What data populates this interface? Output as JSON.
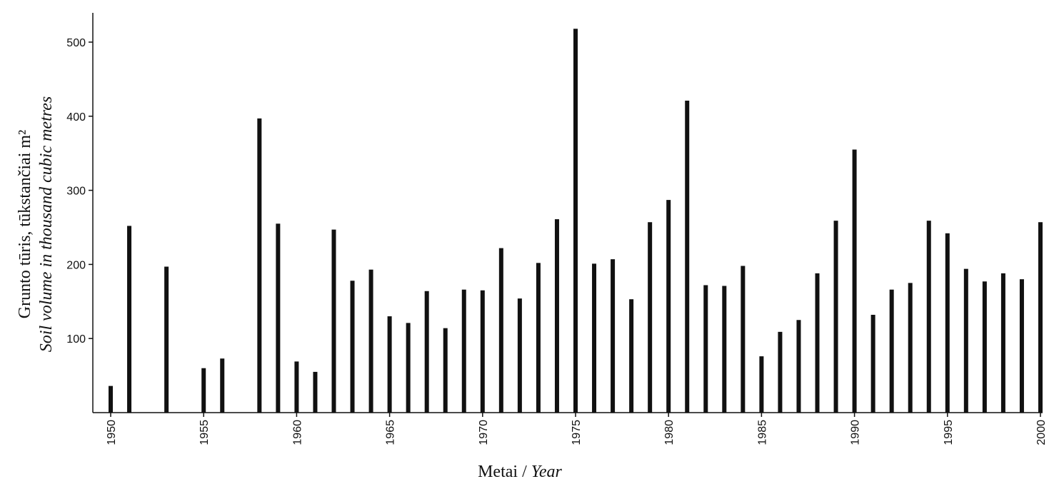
{
  "chart_data": {
    "type": "bar",
    "title": "",
    "xlabel_primary": "Metai / ",
    "xlabel_secondary": "Year",
    "ylabel_primary": "Grunto tūris, tūkstančiai m²",
    "ylabel_secondary": "Soil volume in thousand cubic metres",
    "xlim": [
      1950,
      2000
    ],
    "ylim": [
      0,
      540
    ],
    "yticks": [
      100,
      200,
      300,
      400,
      500
    ],
    "xticks": [
      1950,
      1955,
      1960,
      1965,
      1970,
      1975,
      1980,
      1985,
      1990,
      1995,
      2000
    ],
    "grid": false,
    "colors": {
      "bar": "#111111",
      "axis": "#111111"
    },
    "x": [
      1950,
      1951,
      1953,
      1955,
      1956,
      1958,
      1959,
      1960,
      1961,
      1962,
      1963,
      1964,
      1965,
      1966,
      1967,
      1968,
      1969,
      1970,
      1971,
      1972,
      1973,
      1974,
      1975,
      1976,
      1977,
      1978,
      1979,
      1980,
      1981,
      1982,
      1983,
      1984,
      1985,
      1986,
      1987,
      1988,
      1989,
      1990,
      1991,
      1992,
      1993,
      1994,
      1995,
      1996,
      1997,
      1998,
      1999,
      2000
    ],
    "values": [
      36,
      252,
      197,
      60,
      73,
      397,
      255,
      69,
      55,
      247,
      178,
      193,
      130,
      121,
      164,
      114,
      166,
      165,
      222,
      154,
      202,
      261,
      518,
      201,
      207,
      153,
      257,
      287,
      421,
      172,
      171,
      198,
      76,
      109,
      125,
      188,
      259,
      355,
      132,
      166,
      175,
      259,
      242,
      194,
      177,
      188,
      180,
      257
    ]
  }
}
